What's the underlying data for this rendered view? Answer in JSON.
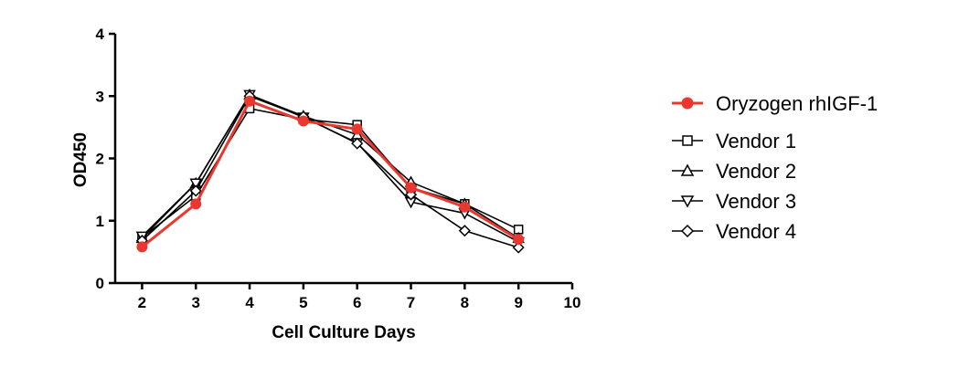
{
  "chart_data": {
    "type": "line",
    "xlabel": "Cell Culture Days",
    "ylabel": "OD450",
    "xlim": [
      1.5,
      10
    ],
    "ylim": [
      0,
      4
    ],
    "xticks": [
      2,
      3,
      4,
      5,
      6,
      7,
      8,
      9,
      10
    ],
    "yticks": [
      0,
      1,
      2,
      3,
      4
    ],
    "legend_position": "right",
    "x": [
      2,
      3,
      4,
      5,
      6,
      7,
      8,
      9
    ],
    "series": [
      {
        "name": "Oryzogen rhIGF-1",
        "marker": "circle-filled",
        "color": "#e8382f",
        "values": [
          0.58,
          1.27,
          2.92,
          2.6,
          2.47,
          1.53,
          1.22,
          0.7
        ]
      },
      {
        "name": "Vendor 1",
        "marker": "square",
        "color": "#000000",
        "values": [
          0.73,
          1.4,
          2.8,
          2.63,
          2.54,
          1.53,
          1.27,
          0.86
        ]
      },
      {
        "name": "Vendor 2",
        "marker": "triangle-up",
        "color": "#000000",
        "values": [
          0.72,
          1.6,
          3.02,
          2.68,
          2.38,
          1.62,
          1.27,
          0.72
        ]
      },
      {
        "name": "Vendor 3",
        "marker": "triangle-down",
        "color": "#000000",
        "values": [
          0.75,
          1.6,
          3.02,
          2.66,
          2.25,
          1.3,
          1.12,
          0.66
        ]
      },
      {
        "name": "Vendor 4",
        "marker": "diamond",
        "color": "#000000",
        "values": [
          0.68,
          1.48,
          3.0,
          2.67,
          2.24,
          1.42,
          0.84,
          0.57
        ]
      }
    ]
  }
}
